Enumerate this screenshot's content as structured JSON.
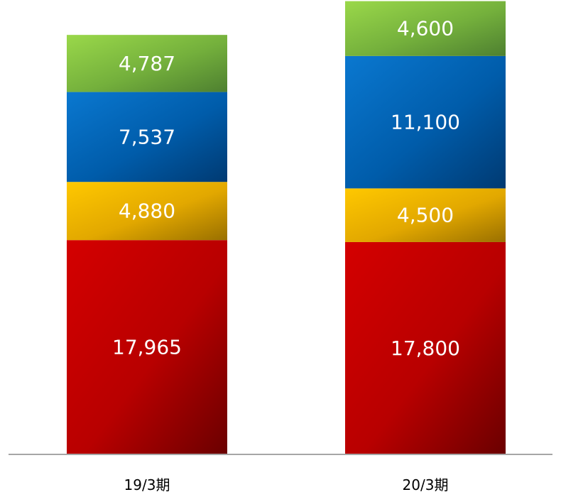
{
  "chart_data": {
    "type": "bar",
    "stacked": true,
    "title": "",
    "xlabel": "",
    "ylabel": "",
    "ylim": [
      0,
      38500
    ],
    "grid": false,
    "categories": [
      "19/3期",
      "20/3期"
    ],
    "series": [
      {
        "values": [
          17965,
          17800
        ],
        "color": "#c00000"
      },
      {
        "values": [
          4880,
          4500
        ],
        "color": "#ffc000"
      },
      {
        "values": [
          7537,
          11100
        ],
        "color": "#0070c0"
      },
      {
        "values": [
          4787,
          4600
        ],
        "color": "#92d050"
      }
    ],
    "data_labels": [
      [
        "17,965",
        "17,800"
      ],
      [
        "4,880",
        "4,500"
      ],
      [
        "7,537",
        "11,100"
      ],
      [
        "4,787",
        "4,600"
      ]
    ]
  }
}
